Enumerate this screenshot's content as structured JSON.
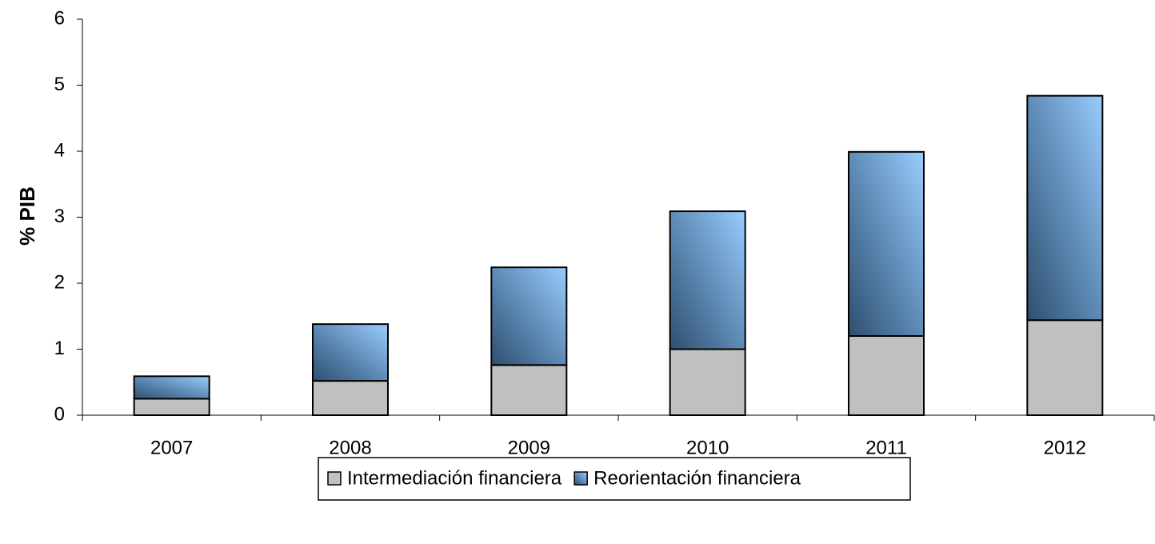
{
  "chart_data": {
    "type": "stacked_bar",
    "ylabel": "% PIB",
    "categories": [
      "2007",
      "2008",
      "2009",
      "2010",
      "2011",
      "2012"
    ],
    "series": [
      {
        "name": "Intermediación financiera",
        "color": "#c0c0c0",
        "values": [
          0.25,
          0.52,
          0.76,
          1.0,
          1.2,
          1.44
        ]
      },
      {
        "name": "Reorientación financiera",
        "color": "#99ccff",
        "values": [
          0.34,
          0.86,
          1.48,
          2.09,
          2.79,
          3.4
        ]
      }
    ],
    "ylim": [
      0,
      6
    ],
    "yticks": [
      0,
      1,
      2,
      3,
      4,
      5,
      6
    ],
    "legend": "bottom"
  }
}
